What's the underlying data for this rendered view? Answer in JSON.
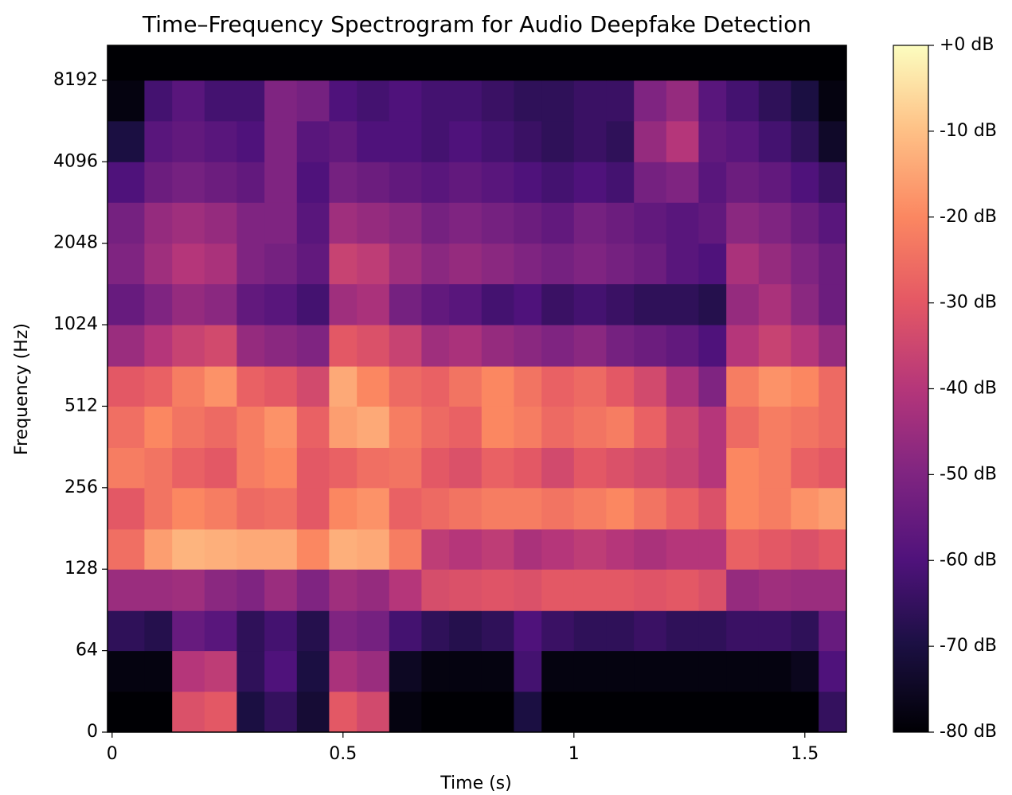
{
  "chart_data": {
    "type": "spectrogram",
    "title": "Time–Frequency Spectrogram for Audio Deepfake Detection",
    "x_label": "Time (s)",
    "y_label": "Frequency (Hz)",
    "colormap": "magma",
    "xlim": [
      -0.01,
      1.59
    ],
    "xticks": [
      0,
      0.5,
      1,
      1.5
    ],
    "ylim": [
      0,
      11025
    ],
    "yscale": "symlog",
    "linthresh": 64,
    "yticks": [
      0,
      64,
      128,
      256,
      512,
      1024,
      2048,
      4096,
      8192
    ],
    "clim": [
      -80,
      0
    ],
    "cbar_ticks": [
      {
        "value": 0,
        "label": "+0 dB"
      },
      {
        "value": -10,
        "label": "-10 dB"
      },
      {
        "value": -20,
        "label": "-20 dB"
      },
      {
        "value": -30,
        "label": "-30 dB"
      },
      {
        "value": -40,
        "label": "-40 dB"
      },
      {
        "value": -50,
        "label": "-50 dB"
      },
      {
        "value": -60,
        "label": "-60 dB"
      },
      {
        "value": -70,
        "label": "-70 dB"
      },
      {
        "value": -80,
        "label": "-80 dB"
      }
    ],
    "x_edges": [
      -0.01,
      0.07,
      0.13,
      0.2,
      0.27,
      0.33,
      0.4,
      0.47,
      0.53,
      0.6,
      0.67,
      0.73,
      0.8,
      0.87,
      0.93,
      1.0,
      1.07,
      1.13,
      1.2,
      1.27,
      1.33,
      1.4,
      1.47,
      1.53,
      1.59
    ],
    "y_edges": [
      0,
      32,
      64,
      90,
      128,
      180,
      256,
      360,
      512,
      720,
      1024,
      1450,
      2048,
      2900,
      4096,
      5800,
      8192,
      11025
    ],
    "values": [
      [
        -80,
        -80,
        -32,
        -30,
        -70,
        -65,
        -72,
        -30,
        -34,
        -78,
        -80,
        -80,
        -80,
        -70,
        -80,
        -80,
        -80,
        -80,
        -80,
        -80,
        -80,
        -80,
        -80,
        -65
      ],
      [
        -78,
        -78,
        -40,
        -38,
        -66,
        -60,
        -70,
        -42,
        -45,
        -75,
        -78,
        -78,
        -78,
        -62,
        -78,
        -78,
        -78,
        -78,
        -78,
        -78,
        -78,
        -78,
        -76,
        -60
      ],
      [
        -66,
        -68,
        -55,
        -58,
        -66,
        -62,
        -68,
        -50,
        -52,
        -62,
        -66,
        -68,
        -66,
        -60,
        -64,
        -66,
        -66,
        -64,
        -66,
        -66,
        -64,
        -64,
        -66,
        -55
      ],
      [
        -45,
        -45,
        -44,
        -48,
        -50,
        -45,
        -50,
        -44,
        -46,
        -40,
        -33,
        -32,
        -31,
        -32,
        -30,
        -30,
        -30,
        -31,
        -30,
        -32,
        -46,
        -44,
        -45,
        -45
      ],
      [
        -25,
        -16,
        -12,
        -13,
        -14,
        -14,
        -20,
        -13,
        -14,
        -22,
        -38,
        -40,
        -38,
        -42,
        -40,
        -38,
        -40,
        -42,
        -40,
        -40,
        -28,
        -30,
        -32,
        -30
      ],
      [
        -30,
        -24,
        -20,
        -22,
        -26,
        -25,
        -30,
        -20,
        -18,
        -28,
        -26,
        -24,
        -22,
        -22,
        -24,
        -22,
        -20,
        -24,
        -28,
        -32,
        -20,
        -22,
        -18,
        -16
      ],
      [
        -22,
        -24,
        -28,
        -30,
        -22,
        -20,
        -30,
        -28,
        -25,
        -24,
        -30,
        -32,
        -28,
        -30,
        -34,
        -30,
        -32,
        -34,
        -36,
        -40,
        -20,
        -22,
        -28,
        -30
      ],
      [
        -25,
        -20,
        -24,
        -26,
        -22,
        -18,
        -28,
        -16,
        -14,
        -22,
        -26,
        -28,
        -20,
        -22,
        -26,
        -24,
        -22,
        -28,
        -35,
        -40,
        -26,
        -22,
        -24,
        -26
      ],
      [
        -30,
        -28,
        -22,
        -18,
        -28,
        -30,
        -34,
        -14,
        -20,
        -26,
        -28,
        -24,
        -20,
        -24,
        -28,
        -26,
        -30,
        -34,
        -42,
        -50,
        -22,
        -18,
        -20,
        -26
      ],
      [
        -45,
        -40,
        -36,
        -34,
        -46,
        -48,
        -50,
        -30,
        -32,
        -36,
        -44,
        -42,
        -46,
        -48,
        -50,
        -48,
        -52,
        -54,
        -56,
        -60,
        -40,
        -36,
        -40,
        -46
      ],
      [
        -55,
        -50,
        -46,
        -48,
        -56,
        -58,
        -62,
        -44,
        -42,
        -52,
        -56,
        -58,
        -62,
        -60,
        -64,
        -62,
        -64,
        -66,
        -66,
        -68,
        -46,
        -42,
        -48,
        -54
      ],
      [
        -50,
        -44,
        -40,
        -42,
        -50,
        -52,
        -56,
        -36,
        -38,
        -44,
        -48,
        -46,
        -48,
        -50,
        -52,
        -50,
        -52,
        -54,
        -58,
        -60,
        -42,
        -46,
        -50,
        -54
      ],
      [
        -52,
        -46,
        -44,
        -46,
        -50,
        -50,
        -58,
        -44,
        -46,
        -48,
        -52,
        -50,
        -52,
        -54,
        -56,
        -52,
        -54,
        -56,
        -58,
        -56,
        -48,
        -50,
        -54,
        -58
      ],
      [
        -60,
        -54,
        -52,
        -54,
        -56,
        -50,
        -60,
        -52,
        -54,
        -56,
        -58,
        -56,
        -58,
        -60,
        -62,
        -60,
        -62,
        -52,
        -50,
        -58,
        -54,
        -56,
        -60,
        -64
      ],
      [
        -70,
        -58,
        -56,
        -58,
        -60,
        -50,
        -58,
        -56,
        -60,
        -60,
        -62,
        -60,
        -62,
        -64,
        -66,
        -64,
        -66,
        -46,
        -40,
        -56,
        -58,
        -62,
        -66,
        -74
      ],
      [
        -78,
        -62,
        -58,
        -62,
        -62,
        -50,
        -52,
        -60,
        -62,
        -60,
        -62,
        -62,
        -64,
        -66,
        -66,
        -64,
        -64,
        -50,
        -46,
        -58,
        -62,
        -66,
        -70,
        -78
      ],
      [
        -80,
        -80,
        -80,
        -80,
        -80,
        -80,
        -80,
        -80,
        -80,
        -80,
        -80,
        -80,
        -80,
        -80,
        -80,
        -80,
        -80,
        -80,
        -80,
        -80,
        -80,
        -80,
        -80,
        -80
      ]
    ]
  }
}
